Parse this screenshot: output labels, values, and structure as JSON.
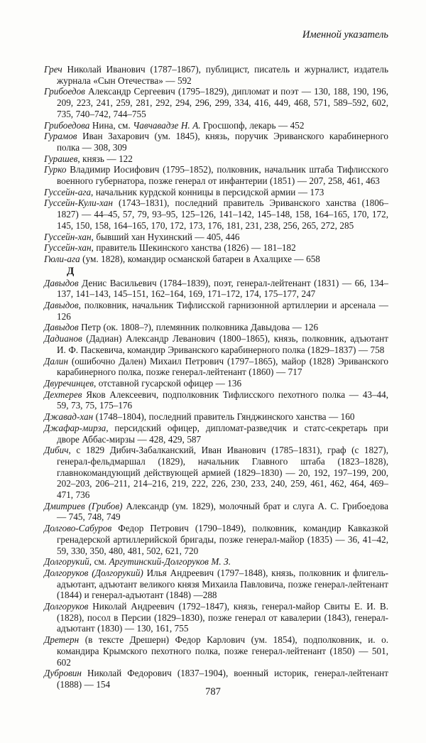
{
  "page": {
    "running_header": "Именной указатель",
    "page_number": "787"
  },
  "index": {
    "sections": [
      {
        "letter": "",
        "entries": [
          {
            "segments": [
              {
                "text": "Греч",
                "italic": true
              },
              {
                "text": " Николай Иванович (1787–1867), публицист, писатель и журналист, издатель журнала «Сын Отечества» — 592",
                "italic": false
              }
            ]
          },
          {
            "segments": [
              {
                "text": "Грибоедов",
                "italic": true
              },
              {
                "text": " Александр Сергеевич (1795–1829), дипломат и поэт — 130, 188, 190, 196, 209, 223, 241, 259, 281, 292, 294, 296, 299, 334, 416, 449, 468, 571, 589–592, 602, 735, 740–742, 744–755",
                "italic": false
              }
            ]
          },
          {
            "segments": [
              {
                "text": "Грибоедова",
                "italic": true
              },
              {
                "text": " Нина, см. ",
                "italic": false
              },
              {
                "text": "Чавчавадзе Н. А.",
                "italic": true
              },
              {
                "text": " Гросшопф, лекарь — 452",
                "italic": false
              }
            ]
          },
          {
            "segments": [
              {
                "text": "Гурамов",
                "italic": true
              },
              {
                "text": " Иван Захарович (ум. 1845), князь, поручик Эриванского карабинерного полка — 308, 309",
                "italic": false
              }
            ]
          },
          {
            "segments": [
              {
                "text": "Гурашев",
                "italic": true
              },
              {
                "text": ", князь — 122",
                "italic": false
              }
            ]
          },
          {
            "segments": [
              {
                "text": "Гурко",
                "italic": true
              },
              {
                "text": " Владимир Иосифович (1795–1852), полковник, начальник штаба Тифлисского военного губернатора, позже генерал от инфантерии (1851) — 207, 258, 461, 463",
                "italic": false
              }
            ]
          },
          {
            "segments": [
              {
                "text": "Гуссейн-ага",
                "italic": true
              },
              {
                "text": ", начальник курдской конницы в персидской армии — 173",
                "italic": false
              }
            ]
          },
          {
            "segments": [
              {
                "text": "Гуссейн-Кули-хан",
                "italic": true
              },
              {
                "text": " (1743–1831), последний правитель Эриванского ханства (1806–1827) — 44–45, 57, 79, 93–95, 125–126, 141–142, 145–148, 158, 164–165, 170, 172, 145, 150, 158, 164–165, 170, 172, 173, 176, 181, 231, 238, 256, 265, 272, 285",
                "italic": false
              }
            ]
          },
          {
            "segments": [
              {
                "text": "Гуссейн-хан",
                "italic": true
              },
              {
                "text": ", бывший хан Нухинский — 405, 446",
                "italic": false
              }
            ]
          },
          {
            "segments": [
              {
                "text": "Гуссейн-хан",
                "italic": true
              },
              {
                "text": ", правитель Шекинского ханства (1826) — 181–182",
                "italic": false
              }
            ]
          },
          {
            "segments": [
              {
                "text": "Гюли-ага",
                "italic": true
              },
              {
                "text": " (ум. 1828), командир османской батареи в Ахалцихе — 658",
                "italic": false
              }
            ]
          }
        ]
      },
      {
        "letter": "Д",
        "entries": [
          {
            "segments": [
              {
                "text": "Давыдов",
                "italic": true
              },
              {
                "text": " Денис Васильевич (1784–1839), поэт, генерал-лейтенант (1831) — 66, 134–137, 141–143, 145–151, 162–164, 169, 171–172, 174, 175–177, 247",
                "italic": false
              }
            ]
          },
          {
            "segments": [
              {
                "text": "Давыдов",
                "italic": true
              },
              {
                "text": ", полковник, начальник Тифлисской гарнизонной артиллерии и арсенала — 126",
                "italic": false
              }
            ]
          },
          {
            "segments": [
              {
                "text": "Давыдов",
                "italic": true
              },
              {
                "text": " Петр (ок. 1808–?), племянник полковника Давыдова — 126",
                "italic": false
              }
            ]
          },
          {
            "segments": [
              {
                "text": "Дадианов",
                "italic": true
              },
              {
                "text": " (Дадиан) Александр Леванович (1800–1865), князь, полковник, адъютант И. Ф. Паскевича, командир Эриванского карабинерного полка (1829–1837) — 758",
                "italic": false
              }
            ]
          },
          {
            "segments": [
              {
                "text": "Далин",
                "italic": true
              },
              {
                "text": " (ошибочно Дален) Михаил Петрович (1797–1865), майор (1828) Эриванского карабинерного полка, позже генерал-лейтенант (1860) — 717",
                "italic": false
              }
            ]
          },
          {
            "segments": [
              {
                "text": "Двуречинцев",
                "italic": true
              },
              {
                "text": ", отставной гусарской офицер — 136",
                "italic": false
              }
            ]
          },
          {
            "segments": [
              {
                "text": "Дехтерев",
                "italic": true
              },
              {
                "text": " Яков Алексеевич, подполковник Тифлисского пехотного полка — 43–44, 59, 73, 75, 175–176",
                "italic": false
              }
            ]
          },
          {
            "segments": [
              {
                "text": "Джавад-хан",
                "italic": true
              },
              {
                "text": " (1748–1804), последний правитель Гянджинского ханства — 160",
                "italic": false
              }
            ]
          },
          {
            "segments": [
              {
                "text": "Джафар-мирза",
                "italic": true
              },
              {
                "text": ", персидский офицер, дипломат-разведчик и статс-секретарь при дворе Аббас-мирзы — 428, 429, 587",
                "italic": false
              }
            ]
          },
          {
            "segments": [
              {
                "text": "Дибич",
                "italic": true
              },
              {
                "text": ", с 1829 Дибич-Забалканский, Иван Иванович (1785–1831), граф (с 1827), генерал-фельдмаршал (1829), начальник Главного штаба (1823–1828), главнокомандующий действующей армией (1829–1830) — 20, 192, 197–199, 200, 202–203, 206–211, 214–216, 219, 222, 226, 230, 233, 240, 259, 461, 462, 464, 469–471, 736",
                "italic": false
              }
            ]
          },
          {
            "segments": [
              {
                "text": "Дмитриев (Грибов)",
                "italic": true
              },
              {
                "text": " Александр (ум. 1829), молочный брат и слуга А. С. Грибоедова — 745, 748, 749",
                "italic": false
              }
            ]
          },
          {
            "segments": [
              {
                "text": "Долгово-Сабуров",
                "italic": true
              },
              {
                "text": " Федор Петрович (1790–1849), полковник, командир Кавказкой гренадерской артиллерийской бригады, позже генерал-майор (1835) — 36, 41–42, 59, 330, 350, 480, 481, 502, 621, 720",
                "italic": false
              }
            ]
          },
          {
            "segments": [
              {
                "text": "Долгорукий",
                "italic": true
              },
              {
                "text": ", см. ",
                "italic": false
              },
              {
                "text": "Аргутинский-Долгоруков М. З.",
                "italic": true
              }
            ]
          },
          {
            "segments": [
              {
                "text": "Долгоруков (Долгорукий)",
                "italic": true
              },
              {
                "text": " Илья Андреевич (1797–1848), князь, полковник и флигель-адъютант, адъютант великого князя Михаила Павловича, позже генерал-лейтенант (1844) и генерал-адъютант (1848) —288",
                "italic": false
              }
            ]
          },
          {
            "segments": [
              {
                "text": "Долгоруков",
                "italic": true
              },
              {
                "text": " Николай Андреевич (1792–1847), князь, генерал-майор Свиты Е. И. В. (1828), посол в Персии (1829–1830), позже генерал от кавалерии (1843), генерал-адъютант (1830) — 130, 161, 755",
                "italic": false
              }
            ]
          },
          {
            "segments": [
              {
                "text": "Дретерн",
                "italic": true
              },
              {
                "text": " (в тексте Дрешерн) Федор Карлович (ум. 1854), подполковник, и. о. командира Крымского пехотного полка, позже генерал-лейтенант (1850) — 501, 602",
                "italic": false
              }
            ]
          },
          {
            "segments": [
              {
                "text": "Дубровин",
                "italic": true
              },
              {
                "text": " Николай Федорович (1837–1904), военный историк, генерал-лейтенант (1888) — 154",
                "italic": false
              }
            ]
          }
        ]
      }
    ]
  }
}
